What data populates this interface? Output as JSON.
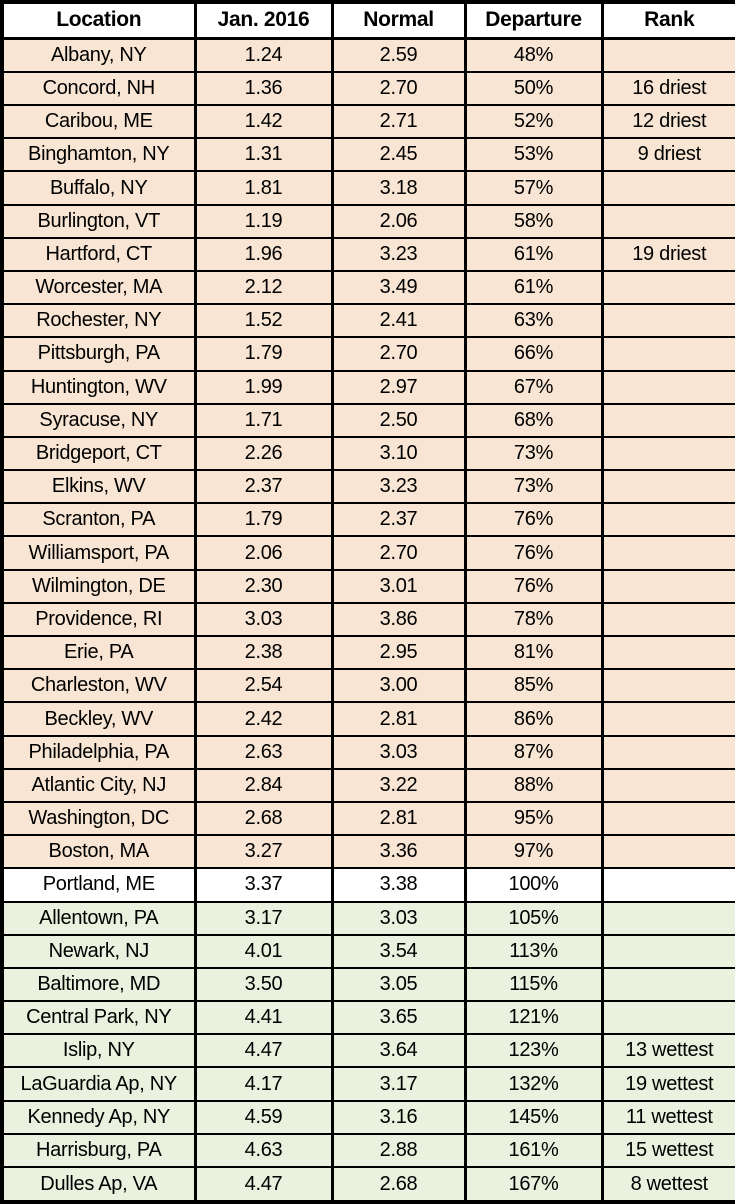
{
  "chart_data": {
    "type": "table",
    "description_semantics": "January 2016 precipitation vs normal by location",
    "columns": [
      "Location",
      "Jan. 2016",
      "Normal",
      "Departure",
      "Rank"
    ],
    "rows": [
      {
        "location": "Albany, NY",
        "jan_2016": "1.24",
        "normal": "2.59",
        "departure": "48%",
        "rank": "",
        "shading": "below-normal"
      },
      {
        "location": "Concord, NH",
        "jan_2016": "1.36",
        "normal": "2.70",
        "departure": "50%",
        "rank": "16 driest",
        "shading": "below-normal"
      },
      {
        "location": "Caribou, ME",
        "jan_2016": "1.42",
        "normal": "2.71",
        "departure": "52%",
        "rank": "12 driest",
        "shading": "below-normal"
      },
      {
        "location": "Binghamton, NY",
        "jan_2016": "1.31",
        "normal": "2.45",
        "departure": "53%",
        "rank": "9 driest",
        "shading": "below-normal"
      },
      {
        "location": "Buffalo, NY",
        "jan_2016": "1.81",
        "normal": "3.18",
        "departure": "57%",
        "rank": "",
        "shading": "below-normal"
      },
      {
        "location": "Burlington, VT",
        "jan_2016": "1.19",
        "normal": "2.06",
        "departure": "58%",
        "rank": "",
        "shading": "below-normal"
      },
      {
        "location": "Hartford, CT",
        "jan_2016": "1.96",
        "normal": "3.23",
        "departure": "61%",
        "rank": "19 driest",
        "shading": "below-normal"
      },
      {
        "location": "Worcester, MA",
        "jan_2016": "2.12",
        "normal": "3.49",
        "departure": "61%",
        "rank": "",
        "shading": "below-normal"
      },
      {
        "location": "Rochester, NY",
        "jan_2016": "1.52",
        "normal": "2.41",
        "departure": "63%",
        "rank": "",
        "shading": "below-normal"
      },
      {
        "location": "Pittsburgh, PA",
        "jan_2016": "1.79",
        "normal": "2.70",
        "departure": "66%",
        "rank": "",
        "shading": "below-normal"
      },
      {
        "location": "Huntington, WV",
        "jan_2016": "1.99",
        "normal": "2.97",
        "departure": "67%",
        "rank": "",
        "shading": "below-normal"
      },
      {
        "location": "Syracuse, NY",
        "jan_2016": "1.71",
        "normal": "2.50",
        "departure": "68%",
        "rank": "",
        "shading": "below-normal"
      },
      {
        "location": "Bridgeport, CT",
        "jan_2016": "2.26",
        "normal": "3.10",
        "departure": "73%",
        "rank": "",
        "shading": "below-normal"
      },
      {
        "location": "Elkins, WV",
        "jan_2016": "2.37",
        "normal": "3.23",
        "departure": "73%",
        "rank": "",
        "shading": "below-normal"
      },
      {
        "location": "Scranton, PA",
        "jan_2016": "1.79",
        "normal": "2.37",
        "departure": "76%",
        "rank": "",
        "shading": "below-normal"
      },
      {
        "location": "Williamsport, PA",
        "jan_2016": "2.06",
        "normal": "2.70",
        "departure": "76%",
        "rank": "",
        "shading": "below-normal"
      },
      {
        "location": "Wilmington, DE",
        "jan_2016": "2.30",
        "normal": "3.01",
        "departure": "76%",
        "rank": "",
        "shading": "below-normal"
      },
      {
        "location": "Providence, RI",
        "jan_2016": "3.03",
        "normal": "3.86",
        "departure": "78%",
        "rank": "",
        "shading": "below-normal"
      },
      {
        "location": "Erie, PA",
        "jan_2016": "2.38",
        "normal": "2.95",
        "departure": "81%",
        "rank": "",
        "shading": "below-normal"
      },
      {
        "location": "Charleston, WV",
        "jan_2016": "2.54",
        "normal": "3.00",
        "departure": "85%",
        "rank": "",
        "shading": "below-normal"
      },
      {
        "location": "Beckley, WV",
        "jan_2016": "2.42",
        "normal": "2.81",
        "departure": "86%",
        "rank": "",
        "shading": "below-normal"
      },
      {
        "location": "Philadelphia, PA",
        "jan_2016": "2.63",
        "normal": "3.03",
        "departure": "87%",
        "rank": "",
        "shading": "below-normal"
      },
      {
        "location": "Atlantic City, NJ",
        "jan_2016": "2.84",
        "normal": "3.22",
        "departure": "88%",
        "rank": "",
        "shading": "below-normal"
      },
      {
        "location": "Washington, DC",
        "jan_2016": "2.68",
        "normal": "2.81",
        "departure": "95%",
        "rank": "",
        "shading": "below-normal"
      },
      {
        "location": "Boston, MA",
        "jan_2016": "3.27",
        "normal": "3.36",
        "departure": "97%",
        "rank": "",
        "shading": "below-normal"
      },
      {
        "location": "Portland, ME",
        "jan_2016": "3.37",
        "normal": "3.38",
        "departure": "100%",
        "rank": "",
        "shading": "normal"
      },
      {
        "location": "Allentown, PA",
        "jan_2016": "3.17",
        "normal": "3.03",
        "departure": "105%",
        "rank": "",
        "shading": "above-normal"
      },
      {
        "location": "Newark, NJ",
        "jan_2016": "4.01",
        "normal": "3.54",
        "departure": "113%",
        "rank": "",
        "shading": "above-normal"
      },
      {
        "location": "Baltimore, MD",
        "jan_2016": "3.50",
        "normal": "3.05",
        "departure": "115%",
        "rank": "",
        "shading": "above-normal"
      },
      {
        "location": "Central Park, NY",
        "jan_2016": "4.41",
        "normal": "3.65",
        "departure": "121%",
        "rank": "",
        "shading": "above-normal"
      },
      {
        "location": "Islip, NY",
        "jan_2016": "4.47",
        "normal": "3.64",
        "departure": "123%",
        "rank": "13 wettest",
        "shading": "above-normal"
      },
      {
        "location": "LaGuardia Ap, NY",
        "jan_2016": "4.17",
        "normal": "3.17",
        "departure": "132%",
        "rank": "19 wettest",
        "shading": "above-normal"
      },
      {
        "location": "Kennedy Ap, NY",
        "jan_2016": "4.59",
        "normal": "3.16",
        "departure": "145%",
        "rank": "11 wettest",
        "shading": "above-normal"
      },
      {
        "location": "Harrisburg, PA",
        "jan_2016": "4.63",
        "normal": "2.88",
        "departure": "161%",
        "rank": "15 wettest",
        "shading": "above-normal"
      },
      {
        "location": "Dulles Ap, VA",
        "jan_2016": "4.47",
        "normal": "2.68",
        "departure": "167%",
        "rank": "8 wettest",
        "shading": "above-normal"
      }
    ],
    "shading_colors": {
      "below-normal": "#F8E5D3",
      "normal": "#FFFFFF",
      "above-normal": "#EAF1DE"
    },
    "layout_hints": {
      "grid": "on",
      "header_background": "#FFFFFF",
      "border_color": "#000000",
      "text_alignment": "center"
    }
  }
}
